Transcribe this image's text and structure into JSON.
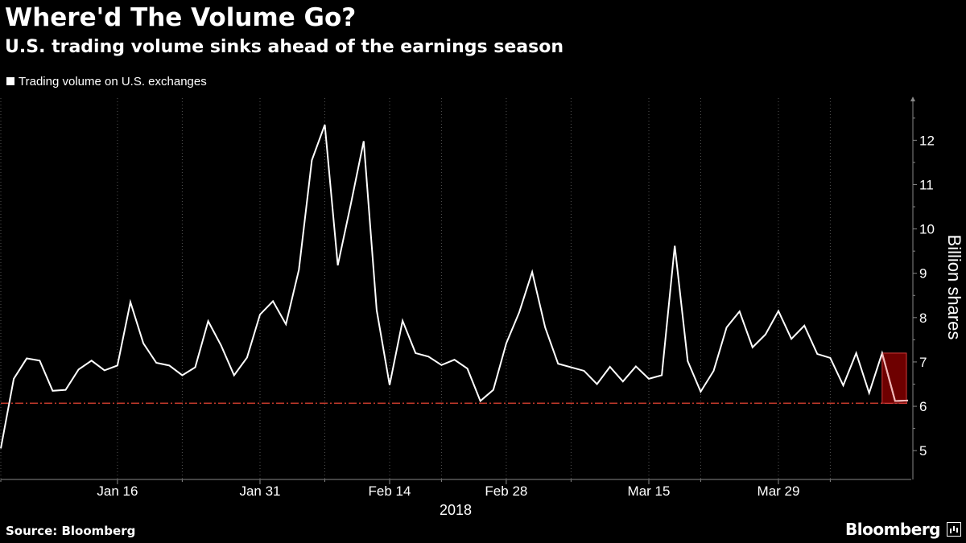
{
  "header": {
    "title": "Where'd The Volume Go?",
    "subtitle": "U.S. trading volume sinks ahead of the earnings season"
  },
  "legend": {
    "label": "Trading volume on U.S. exchanges"
  },
  "footer": {
    "source": "Source: Bloomberg",
    "brand": "Bloomberg"
  },
  "colors": {
    "background": "#000000",
    "line": "#ffffff",
    "grid": "#555555",
    "reference_line": "#c0392b",
    "highlight_fill": "#6e0000",
    "highlight_stroke": "#d43a3a"
  },
  "chart_data": {
    "type": "line",
    "title": "Where'd The Volume Go?",
    "subtitle": "U.S. trading volume sinks ahead of the earnings season",
    "xlabel": "2018",
    "ylabel": "Billion shares",
    "x_tick_labels": [
      "Jan 16",
      "Jan 31",
      "Feb 14",
      "Feb 28",
      "Mar 15",
      "Mar 29"
    ],
    "y_ticks": [
      5,
      6,
      7,
      8,
      9,
      10,
      11,
      12
    ],
    "ylim": [
      4.35,
      12.95
    ],
    "grid": "vertical",
    "legend_position": "top-left",
    "reference_line": 6.07,
    "series": [
      {
        "name": "Trading volume on U.S. exchanges",
        "x": [
          "2018-01-02",
          "2018-01-03",
          "2018-01-04",
          "2018-01-05",
          "2018-01-08",
          "2018-01-09",
          "2018-01-10",
          "2018-01-11",
          "2018-01-12",
          "2018-01-16",
          "2018-01-17",
          "2018-01-18",
          "2018-01-19",
          "2018-01-22",
          "2018-01-23",
          "2018-01-24",
          "2018-01-25",
          "2018-01-26",
          "2018-01-29",
          "2018-01-30",
          "2018-01-31",
          "2018-02-01",
          "2018-02-02",
          "2018-02-05",
          "2018-02-06",
          "2018-02-07",
          "2018-02-08",
          "2018-02-09",
          "2018-02-12",
          "2018-02-13",
          "2018-02-14",
          "2018-02-15",
          "2018-02-16",
          "2018-02-20",
          "2018-02-21",
          "2018-02-22",
          "2018-02-23",
          "2018-02-26",
          "2018-02-27",
          "2018-02-28",
          "2018-03-01",
          "2018-03-02",
          "2018-03-05",
          "2018-03-06",
          "2018-03-07",
          "2018-03-08",
          "2018-03-09",
          "2018-03-12",
          "2018-03-13",
          "2018-03-14",
          "2018-03-15",
          "2018-03-16",
          "2018-03-19",
          "2018-03-20",
          "2018-03-21",
          "2018-03-22",
          "2018-03-23",
          "2018-03-26",
          "2018-03-27",
          "2018-03-28",
          "2018-03-29",
          "2018-04-02",
          "2018-04-03",
          "2018-04-04",
          "2018-04-05",
          "2018-04-06",
          "2018-04-09",
          "2018-04-10",
          "2018-04-11",
          "2018-04-12",
          "2018-04-13"
        ],
        "values": [
          5.05,
          6.62,
          7.08,
          7.03,
          6.35,
          6.37,
          6.83,
          7.03,
          6.81,
          6.92,
          8.35,
          7.42,
          6.98,
          6.92,
          6.7,
          6.88,
          7.92,
          7.37,
          6.7,
          7.1,
          8.07,
          8.37,
          7.85,
          9.08,
          11.55,
          12.35,
          9.18,
          10.55,
          11.98,
          8.17,
          6.48,
          7.93,
          7.2,
          7.12,
          6.93,
          7.05,
          6.85,
          6.12,
          6.37,
          7.42,
          8.12,
          9.03,
          7.78,
          6.96,
          6.88,
          6.8,
          6.5,
          6.89,
          6.56,
          6.9,
          6.62,
          6.7,
          9.62,
          7.02,
          6.33,
          6.8,
          7.78,
          8.14,
          7.33,
          7.62,
          8.15,
          7.52,
          7.82,
          7.18,
          7.09,
          6.47,
          7.2,
          6.3,
          7.2,
          6.12,
          6.13
        ]
      }
    ]
  }
}
